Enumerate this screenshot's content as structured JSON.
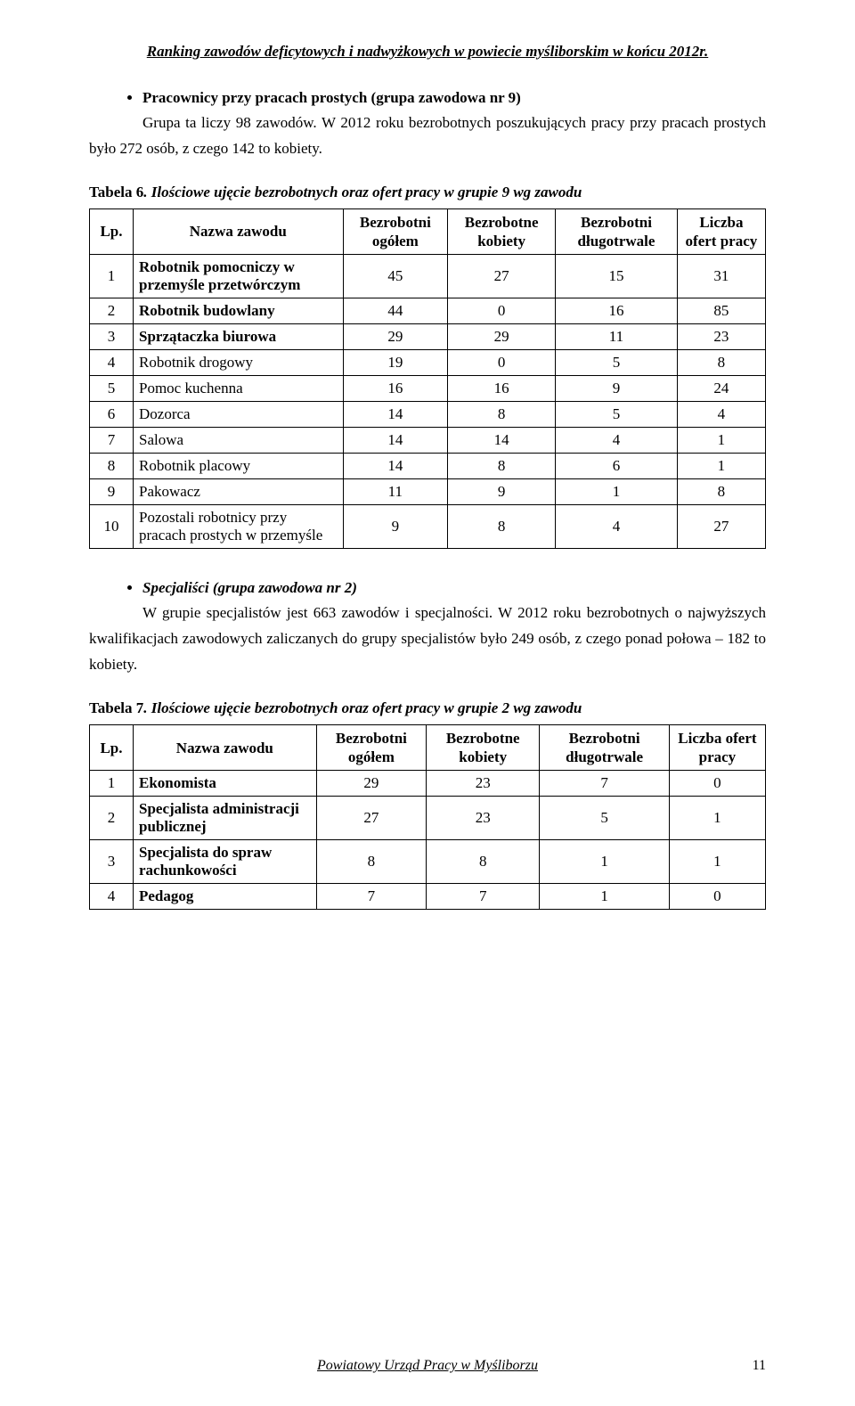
{
  "header": {
    "title": "Ranking zawodów deficytowych i nadwyżkowych w powiecie myśliborskim w końcu 2012r."
  },
  "section1": {
    "bullet": "Pracownicy przy pracach prostych (grupa zawodowa nr 9)",
    "paragraph": "Grupa ta liczy 98 zawodów. W 2012 roku bezrobotnych poszukujących pracy przy pracach prostych było 272 osób, z czego 142 to kobiety."
  },
  "table6": {
    "caption_bold": "Tabela 6",
    "caption_rest": ". Ilościowe ujęcie bezrobotnych oraz ofert pracy w grupie 9 wg zawodu",
    "columns": {
      "lp": "Lp.",
      "name": "Nazwa zawodu",
      "c1": "Bezrobotni ogółem",
      "c2": "Bezrobotne kobiety",
      "c3": "Bezrobotni długotrwale",
      "c4": "Liczba ofert pracy"
    },
    "rows": [
      {
        "lp": "1",
        "name": "Robotnik pomocniczy w przemyśle przetwórczym",
        "v": [
          "45",
          "27",
          "15",
          "31"
        ],
        "bold": true
      },
      {
        "lp": "2",
        "name": "Robotnik budowlany",
        "v": [
          "44",
          "0",
          "16",
          "85"
        ],
        "bold": true
      },
      {
        "lp": "3",
        "name": "Sprzątaczka biurowa",
        "v": [
          "29",
          "29",
          "11",
          "23"
        ],
        "bold": true
      },
      {
        "lp": "4",
        "name": "Robotnik drogowy",
        "v": [
          "19",
          "0",
          "5",
          "8"
        ],
        "bold": false
      },
      {
        "lp": "5",
        "name": "Pomoc kuchenna",
        "v": [
          "16",
          "16",
          "9",
          "24"
        ],
        "bold": false
      },
      {
        "lp": "6",
        "name": "Dozorca",
        "v": [
          "14",
          "8",
          "5",
          "4"
        ],
        "bold": false
      },
      {
        "lp": "7",
        "name": "Salowa",
        "v": [
          "14",
          "14",
          "4",
          "1"
        ],
        "bold": false
      },
      {
        "lp": "8",
        "name": "Robotnik placowy",
        "v": [
          "14",
          "8",
          "6",
          "1"
        ],
        "bold": false
      },
      {
        "lp": "9",
        "name": "Pakowacz",
        "v": [
          "11",
          "9",
          "1",
          "8"
        ],
        "bold": false
      },
      {
        "lp": "10",
        "name": "Pozostali robotnicy przy pracach prostych w przemyśle",
        "v": [
          "9",
          "8",
          "4",
          "27"
        ],
        "bold": false
      }
    ]
  },
  "section2": {
    "bullet": "Specjaliści (grupa zawodowa nr 2)",
    "paragraph": "W grupie specjalistów jest 663 zawodów i specjalności. W 2012 roku bezrobotnych o najwyższych kwalifikacjach zawodowych zaliczanych do grupy specjalistów było 249 osób, z czego ponad połowa – 182 to kobiety."
  },
  "table7": {
    "caption_bold": "Tabela 7",
    "caption_rest": ". Ilościowe ujęcie bezrobotnych oraz ofert pracy w grupie 2 wg zawodu",
    "columns": {
      "lp": "Lp.",
      "name": "Nazwa zawodu",
      "c1": "Bezrobotni ogółem",
      "c2": "Bezrobotne kobiety",
      "c3": "Bezrobotni długotrwale",
      "c4": "Liczba ofert pracy"
    },
    "rows": [
      {
        "lp": "1",
        "name": "Ekonomista",
        "v": [
          "29",
          "23",
          "7",
          "0"
        ],
        "bold": true
      },
      {
        "lp": "2",
        "name": "Specjalista administracji publicznej",
        "v": [
          "27",
          "23",
          "5",
          "1"
        ],
        "bold": true
      },
      {
        "lp": "3",
        "name": "Specjalista do spraw rachunkowości",
        "v": [
          "8",
          "8",
          "1",
          "1"
        ],
        "bold": true
      },
      {
        "lp": "4",
        "name": "Pedagog",
        "v": [
          "7",
          "7",
          "1",
          "0"
        ],
        "bold": true
      }
    ]
  },
  "footer": {
    "text": "Powiatowy Urząd Pracy w Myśliborzu",
    "page": "11"
  }
}
